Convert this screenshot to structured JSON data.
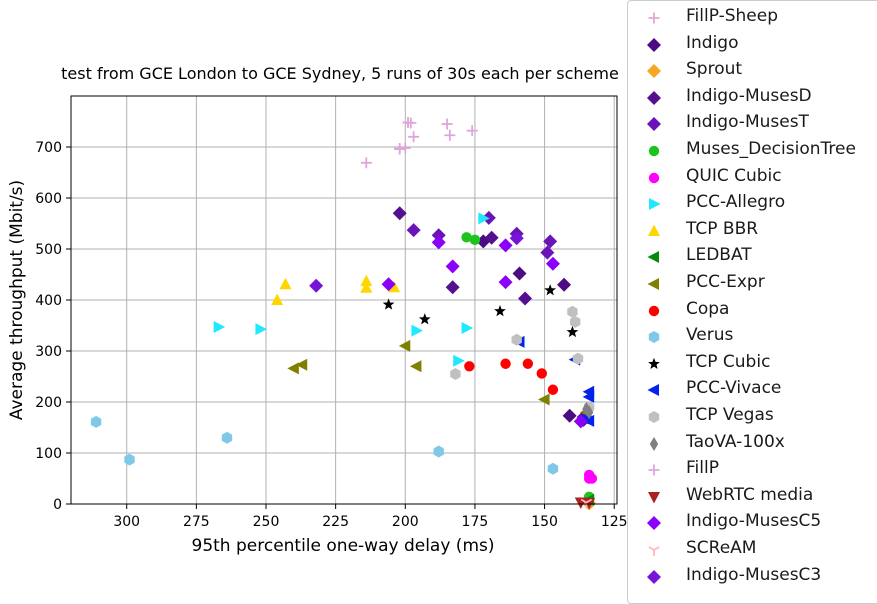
{
  "chart_data": {
    "type": "scatter",
    "title": "test from GCE London to GCE Sydney, 5 runs of 30s each per scheme",
    "xlabel": "95th percentile one-way delay (ms)",
    "ylabel": "Average throughput (Mbit/s)",
    "x_inverted": true,
    "xlim": [
      320,
      124
    ],
    "ylim": [
      0,
      800
    ],
    "xticks": [
      300,
      275,
      250,
      225,
      200,
      175,
      150,
      125
    ],
    "yticks": [
      0,
      100,
      200,
      300,
      400,
      500,
      600,
      700
    ],
    "grid": true,
    "legend_placement": "right-outside",
    "series": [
      {
        "name": "FillP-Sheep",
        "marker": "plus",
        "color": "#e0a6dc",
        "points": [
          [
            214,
            669
          ],
          [
            202,
            697
          ],
          [
            198,
            747
          ],
          [
            197,
            720
          ],
          [
            185,
            745
          ],
          [
            184,
            723
          ],
          [
            176,
            732
          ],
          [
            200,
            698
          ],
          [
            199,
            748
          ]
        ]
      },
      {
        "name": "Indigo",
        "marker": "diamond",
        "color": "#4b0c83",
        "points": [
          [
            159,
            452
          ],
          [
            172,
            515
          ],
          [
            143,
            430
          ],
          [
            141,
            173
          ],
          [
            136,
            165
          ]
        ]
      },
      {
        "name": "Sprout",
        "marker": "diamond",
        "color": "#f5a623",
        "points": [
          [
            134,
            1
          ]
        ]
      },
      {
        "name": "Indigo-MusesD",
        "marker": "diamond",
        "color": "#55108f",
        "points": [
          [
            202,
            570
          ],
          [
            183,
            425
          ],
          [
            157,
            403
          ],
          [
            169,
            522
          ],
          [
            136,
            170
          ]
        ]
      },
      {
        "name": "Indigo-MusesT",
        "marker": "diamond",
        "color": "#6a14b8",
        "points": [
          [
            197,
            537
          ],
          [
            188,
            527
          ],
          [
            170,
            561
          ],
          [
            160,
            530
          ],
          [
            149,
            493
          ],
          [
            148,
            515
          ]
        ]
      },
      {
        "name": "Muses_DecisionTree",
        "marker": "circle",
        "color": "#1ec41e",
        "points": [
          [
            178,
            523
          ],
          [
            175,
            518
          ],
          [
            134,
            14
          ]
        ]
      },
      {
        "name": "QUIC Cubic",
        "marker": "circle",
        "color": "#ff00ff",
        "points": [
          [
            134,
            57
          ],
          [
            134,
            50
          ],
          [
            133,
            50
          ]
        ]
      },
      {
        "name": "PCC-Allegro",
        "marker": "triangle-right",
        "color": "#1fe8ff",
        "points": [
          [
            267,
            347
          ],
          [
            252,
            343
          ],
          [
            196,
            340
          ],
          [
            181,
            281
          ],
          [
            178,
            345
          ],
          [
            172,
            560
          ]
        ]
      },
      {
        "name": "TCP BBR",
        "marker": "triangle-up",
        "color": "#ffd600",
        "points": [
          [
            246,
            400
          ],
          [
            243,
            431
          ],
          [
            214,
            424
          ],
          [
            214,
            437
          ],
          [
            204,
            425
          ]
        ]
      },
      {
        "name": "LEDBAT",
        "marker": "triangle-left",
        "color": "#0a8a0a",
        "points": [
          [
            134,
            8
          ]
        ]
      },
      {
        "name": "PCC-Expr",
        "marker": "triangle-left",
        "color": "#808000",
        "points": [
          [
            240,
            266
          ],
          [
            237,
            273
          ],
          [
            200,
            310
          ],
          [
            196,
            270
          ],
          [
            150,
            205
          ],
          [
            135,
            180
          ]
        ]
      },
      {
        "name": "Copa",
        "marker": "circle",
        "color": "#ff0000",
        "points": [
          [
            177,
            270
          ],
          [
            164,
            275
          ],
          [
            156,
            275
          ],
          [
            151,
            256
          ],
          [
            147,
            224
          ]
        ]
      },
      {
        "name": "Verus",
        "marker": "hexagon",
        "color": "#80c8e8",
        "points": [
          [
            311,
            161
          ],
          [
            299,
            87
          ],
          [
            264,
            130
          ],
          [
            188,
            103
          ],
          [
            147,
            69
          ]
        ]
      },
      {
        "name": "TCP Cubic",
        "marker": "star",
        "color": "#000000",
        "points": [
          [
            206,
            391
          ],
          [
            193,
            362
          ],
          [
            166,
            378
          ],
          [
            148,
            419
          ],
          [
            140,
            337
          ]
        ]
      },
      {
        "name": "PCC-Vivace",
        "marker": "triangle-left",
        "color": "#0022ee",
        "points": [
          [
            134,
            220
          ],
          [
            134,
            210
          ],
          [
            135,
            168
          ],
          [
            134,
            163
          ],
          [
            136,
            168
          ],
          [
            159,
            318
          ],
          [
            139,
            283
          ]
        ]
      },
      {
        "name": "TCP Vegas",
        "marker": "hexagon",
        "color": "#c0c0c0",
        "points": [
          [
            182,
            255
          ],
          [
            160,
            322
          ],
          [
            140,
            377
          ],
          [
            139,
            357
          ],
          [
            138,
            285
          ],
          [
            134,
            190
          ]
        ]
      },
      {
        "name": "TaoVA-100x",
        "marker": "thin-diamond",
        "color": "#808080",
        "points": [
          [
            135,
            186
          ],
          [
            134,
            180
          ]
        ]
      },
      {
        "name": "FillP",
        "marker": "plus",
        "color": "#e0a6dc",
        "points": [
          [
            199,
            748
          ],
          [
            202,
            696
          ]
        ]
      },
      {
        "name": "WebRTC media",
        "marker": "triangle-down",
        "color": "#aa2222",
        "points": [
          [
            137,
            3
          ],
          [
            134,
            2
          ]
        ]
      },
      {
        "name": "Indigo-MusesC5",
        "marker": "diamond",
        "color": "#8a00f8",
        "points": [
          [
            206,
            431
          ],
          [
            183,
            466
          ],
          [
            164,
            435
          ],
          [
            147,
            471
          ],
          [
            188,
            513
          ],
          [
            164,
            507
          ],
          [
            137,
            162
          ]
        ]
      },
      {
        "name": "SCReAM",
        "marker": "tri-down",
        "color": "#ffb6c1",
        "points": [
          [
            135,
            3
          ]
        ]
      },
      {
        "name": "Indigo-MusesC3",
        "marker": "diamond",
        "color": "#7814d8",
        "points": [
          [
            232,
            428
          ],
          [
            160,
            521
          ]
        ]
      }
    ]
  }
}
